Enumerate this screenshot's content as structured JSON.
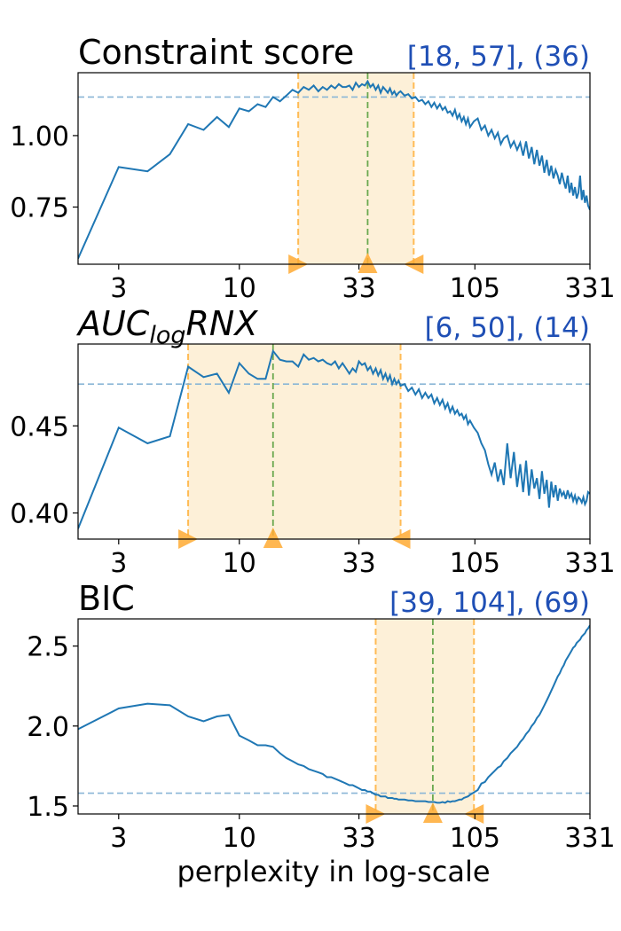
{
  "colors": {
    "line": "#1f77b4",
    "band_fill": "#fdf0d8",
    "band_edge": "#ffbb55",
    "best_line": "#6aa84f",
    "ref_line": "#8ab6d6",
    "marker": "#ffaa33",
    "interval_text": "#1f4fb5",
    "axis": "#000000"
  },
  "xlabel": "perplexity in log-scale",
  "chart_data": [
    {
      "type": "line",
      "title": "Constraint score",
      "interval_label": "[18, 57], (36)",
      "x_scale": "log",
      "xlim": [
        2,
        331
      ],
      "xticks": [
        3,
        10,
        33,
        105,
        331
      ],
      "xtick_labels": [
        "3",
        "10",
        "33",
        "105",
        "331"
      ],
      "ylim": [
        0.55,
        1.22
      ],
      "yticks": [
        0.75,
        1.0
      ],
      "ytick_labels": [
        "0.75",
        "1.00"
      ],
      "ref_y": 1.135,
      "band": [
        18,
        57
      ],
      "best_x": 36,
      "x": [
        2,
        3,
        4,
        5,
        6,
        7,
        8,
        9,
        10,
        11,
        12,
        13,
        14,
        15,
        16,
        17,
        18,
        19,
        20,
        21,
        22,
        23,
        24,
        25,
        26,
        27,
        28,
        29,
        30,
        31,
        32,
        33,
        34,
        35,
        36,
        37,
        38,
        39,
        40,
        41,
        42,
        43,
        44,
        45,
        46,
        47,
        48,
        49,
        50,
        52,
        54,
        56,
        58,
        60,
        62,
        64,
        66,
        68,
        70,
        72,
        74,
        76,
        78,
        80,
        82,
        84,
        86,
        88,
        90,
        92,
        94,
        96,
        98,
        100,
        104,
        108,
        112,
        116,
        120,
        124,
        128,
        132,
        136,
        140,
        145,
        150,
        155,
        160,
        165,
        170,
        175,
        180,
        185,
        190,
        195,
        200,
        205,
        210,
        215,
        220,
        225,
        230,
        235,
        240,
        245,
        250,
        255,
        260,
        265,
        270,
        275,
        280,
        285,
        290,
        295,
        300,
        305,
        310,
        315,
        320,
        325,
        331
      ],
      "values": [
        0.57,
        0.89,
        0.875,
        0.935,
        1.04,
        1.02,
        1.065,
        1.03,
        1.095,
        1.085,
        1.11,
        1.1,
        1.135,
        1.12,
        1.14,
        1.16,
        1.15,
        1.17,
        1.16,
        1.175,
        1.155,
        1.17,
        1.16,
        1.175,
        1.165,
        1.18,
        1.17,
        1.17,
        1.175,
        1.16,
        1.185,
        1.17,
        1.18,
        1.175,
        1.19,
        1.17,
        1.18,
        1.16,
        1.175,
        1.15,
        1.17,
        1.16,
        1.15,
        1.165,
        1.145,
        1.155,
        1.14,
        1.15,
        1.155,
        1.14,
        1.145,
        1.13,
        1.135,
        1.12,
        1.125,
        1.11,
        1.12,
        1.1,
        1.115,
        1.095,
        1.11,
        1.09,
        1.1,
        1.08,
        1.085,
        1.07,
        1.09,
        1.06,
        1.075,
        1.05,
        1.065,
        1.04,
        1.06,
        1.03,
        1.05,
        1.06,
        1.02,
        1.035,
        1.0,
        1.02,
        0.99,
        1.01,
        0.97,
        0.99,
        1.0,
        0.96,
        0.98,
        0.95,
        0.975,
        0.93,
        0.98,
        0.92,
        0.96,
        0.9,
        0.95,
        0.895,
        0.93,
        0.87,
        0.915,
        0.86,
        0.895,
        0.85,
        0.88,
        0.86,
        0.83,
        0.87,
        0.84,
        0.815,
        0.86,
        0.8,
        0.835,
        0.79,
        0.82,
        0.78,
        0.8,
        0.86,
        0.775,
        0.81,
        0.765,
        0.79,
        0.755,
        0.74
      ]
    },
    {
      "type": "line",
      "title": "AUC_logRNX",
      "interval_label": "[6, 50], (14)",
      "x_scale": "log",
      "xlim": [
        2,
        331
      ],
      "xticks": [
        3,
        10,
        33,
        105,
        331
      ],
      "xtick_labels": [
        "3",
        "10",
        "33",
        "105",
        "331"
      ],
      "ylim": [
        0.385,
        0.497
      ],
      "yticks": [
        0.4,
        0.45
      ],
      "ytick_labels": [
        "0.40",
        "0.45"
      ],
      "ref_y": 0.474,
      "band": [
        6,
        50
      ],
      "best_x": 14,
      "x": [
        2,
        3,
        4,
        5,
        6,
        7,
        8,
        9,
        10,
        11,
        12,
        13,
        14,
        15,
        16,
        17,
        18,
        19,
        20,
        21,
        22,
        23,
        24,
        25,
        26,
        27,
        28,
        29,
        30,
        31,
        32,
        33,
        34,
        35,
        36,
        37,
        38,
        39,
        40,
        41,
        42,
        43,
        44,
        45,
        46,
        47,
        48,
        49,
        50,
        52,
        54,
        56,
        58,
        60,
        62,
        64,
        66,
        68,
        70,
        72,
        74,
        76,
        78,
        80,
        82,
        84,
        86,
        88,
        90,
        92,
        94,
        96,
        98,
        100,
        104,
        108,
        112,
        116,
        120,
        124,
        128,
        132,
        136,
        140,
        145,
        150,
        155,
        160,
        165,
        170,
        175,
        180,
        185,
        190,
        195,
        200,
        205,
        210,
        215,
        220,
        225,
        230,
        235,
        240,
        245,
        250,
        255,
        260,
        265,
        270,
        275,
        280,
        285,
        290,
        295,
        300,
        305,
        310,
        315,
        320,
        325,
        331
      ],
      "values": [
        0.391,
        0.449,
        0.44,
        0.444,
        0.484,
        0.478,
        0.48,
        0.469,
        0.486,
        0.48,
        0.477,
        0.477,
        0.493,
        0.488,
        0.487,
        0.487,
        0.484,
        0.491,
        0.488,
        0.489,
        0.487,
        0.488,
        0.486,
        0.485,
        0.487,
        0.483,
        0.486,
        0.483,
        0.48,
        0.483,
        0.481,
        0.487,
        0.485,
        0.486,
        0.482,
        0.484,
        0.48,
        0.483,
        0.479,
        0.482,
        0.477,
        0.48,
        0.476,
        0.479,
        0.474,
        0.477,
        0.474,
        0.476,
        0.473,
        0.474,
        0.47,
        0.472,
        0.468,
        0.471,
        0.466,
        0.469,
        0.466,
        0.468,
        0.463,
        0.466,
        0.462,
        0.465,
        0.46,
        0.463,
        0.458,
        0.461,
        0.457,
        0.459,
        0.456,
        0.457,
        0.454,
        0.456,
        0.451,
        0.453,
        0.449,
        0.446,
        0.44,
        0.436,
        0.428,
        0.422,
        0.429,
        0.418,
        0.425,
        0.416,
        0.44,
        0.42,
        0.435,
        0.415,
        0.428,
        0.412,
        0.43,
        0.41,
        0.425,
        0.414,
        0.42,
        0.408,
        0.424,
        0.411,
        0.419,
        0.403,
        0.418,
        0.409,
        0.416,
        0.407,
        0.414,
        0.41,
        0.412,
        0.408,
        0.413,
        0.409,
        0.411,
        0.407,
        0.41,
        0.406,
        0.409,
        0.408,
        0.406,
        0.409,
        0.405,
        0.407,
        0.412,
        0.411
      ]
    },
    {
      "type": "line",
      "title": "BIC",
      "interval_label": "[39, 104], (69)",
      "x_scale": "log",
      "xlim": [
        2,
        331
      ],
      "xticks": [
        3,
        10,
        33,
        105,
        331
      ],
      "xtick_labels": [
        "3",
        "10",
        "33",
        "105",
        "331"
      ],
      "ylim": [
        1.45,
        2.67
      ],
      "yticks": [
        1.5,
        2.0,
        2.5
      ],
      "ytick_labels": [
        "1.5",
        "2.0",
        "2.5"
      ],
      "ref_y": 1.58,
      "band": [
        39,
        104
      ],
      "best_x": 69,
      "x": [
        2,
        3,
        4,
        5,
        6,
        7,
        8,
        9,
        10,
        11,
        12,
        13,
        14,
        15,
        16,
        17,
        18,
        19,
        20,
        21,
        22,
        23,
        24,
        25,
        26,
        27,
        28,
        29,
        30,
        31,
        32,
        33,
        34,
        35,
        36,
        37,
        38,
        39,
        40,
        41,
        42,
        43,
        44,
        45,
        46,
        47,
        48,
        49,
        50,
        52,
        54,
        56,
        58,
        60,
        62,
        64,
        66,
        68,
        70,
        72,
        74,
        76,
        78,
        80,
        82,
        84,
        86,
        88,
        90,
        92,
        94,
        96,
        98,
        100,
        104,
        108,
        112,
        116,
        120,
        124,
        128,
        132,
        136,
        140,
        145,
        150,
        155,
        160,
        165,
        170,
        175,
        180,
        185,
        190,
        195,
        200,
        205,
        210,
        215,
        220,
        225,
        230,
        235,
        240,
        245,
        250,
        255,
        260,
        265,
        270,
        275,
        280,
        285,
        290,
        295,
        300,
        305,
        310,
        315,
        320,
        325,
        331
      ],
      "values": [
        1.98,
        2.11,
        2.14,
        2.13,
        2.06,
        2.03,
        2.06,
        2.07,
        1.94,
        1.91,
        1.88,
        1.88,
        1.87,
        1.83,
        1.8,
        1.78,
        1.76,
        1.75,
        1.73,
        1.72,
        1.71,
        1.7,
        1.68,
        1.68,
        1.67,
        1.66,
        1.65,
        1.64,
        1.63,
        1.63,
        1.62,
        1.61,
        1.6,
        1.6,
        1.59,
        1.59,
        1.58,
        1.57,
        1.57,
        1.56,
        1.56,
        1.56,
        1.55,
        1.55,
        1.55,
        1.545,
        1.545,
        1.54,
        1.54,
        1.54,
        1.535,
        1.535,
        1.53,
        1.53,
        1.53,
        1.53,
        1.525,
        1.525,
        1.525,
        1.52,
        1.52,
        1.525,
        1.52,
        1.53,
        1.525,
        1.53,
        1.53,
        1.535,
        1.54,
        1.54,
        1.55,
        1.555,
        1.56,
        1.57,
        1.585,
        1.6,
        1.64,
        1.65,
        1.68,
        1.7,
        1.72,
        1.74,
        1.75,
        1.78,
        1.8,
        1.83,
        1.85,
        1.87,
        1.9,
        1.92,
        1.95,
        1.97,
        2.0,
        2.02,
        2.05,
        2.07,
        2.1,
        2.13,
        2.16,
        2.19,
        2.22,
        2.25,
        2.28,
        2.31,
        2.33,
        2.36,
        2.38,
        2.41,
        2.43,
        2.45,
        2.47,
        2.49,
        2.5,
        2.52,
        2.53,
        2.54,
        2.56,
        2.57,
        2.58,
        2.6,
        2.61,
        2.63
      ]
    }
  ]
}
